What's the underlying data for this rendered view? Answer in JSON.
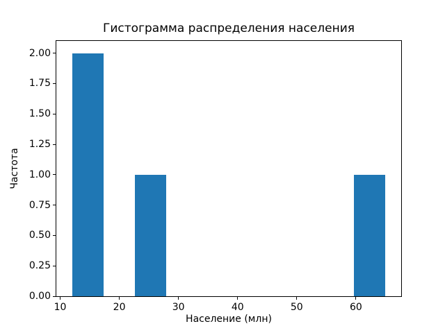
{
  "chart_data": {
    "type": "bar",
    "subtype": "histogram",
    "title": "Гистограмма распределения населения",
    "xlabel": "Население (млн)",
    "ylabel": "Частота",
    "bin_edges": [
      12.0,
      17.3,
      22.6,
      27.9,
      33.2,
      38.5,
      43.8,
      49.1,
      54.4,
      59.7,
      65.0
    ],
    "counts": [
      2,
      0,
      1,
      0,
      0,
      0,
      0,
      0,
      0,
      1
    ],
    "xlim": [
      9.35,
      67.65
    ],
    "ylim": [
      0,
      2.1
    ],
    "x_ticks": [
      10,
      20,
      30,
      40,
      50,
      60
    ],
    "x_tick_labels": [
      "10",
      "20",
      "30",
      "40",
      "50",
      "60"
    ],
    "y_ticks": [
      0,
      0.25,
      0.5,
      0.75,
      1,
      1.25,
      1.5,
      1.75,
      2
    ],
    "y_tick_labels": [
      "0.00",
      "0.25",
      "0.50",
      "0.75",
      "1.00",
      "1.25",
      "1.50",
      "1.75",
      "2.00"
    ],
    "bar_color": "#1f77b4",
    "grid": false,
    "legend_position": "none"
  }
}
